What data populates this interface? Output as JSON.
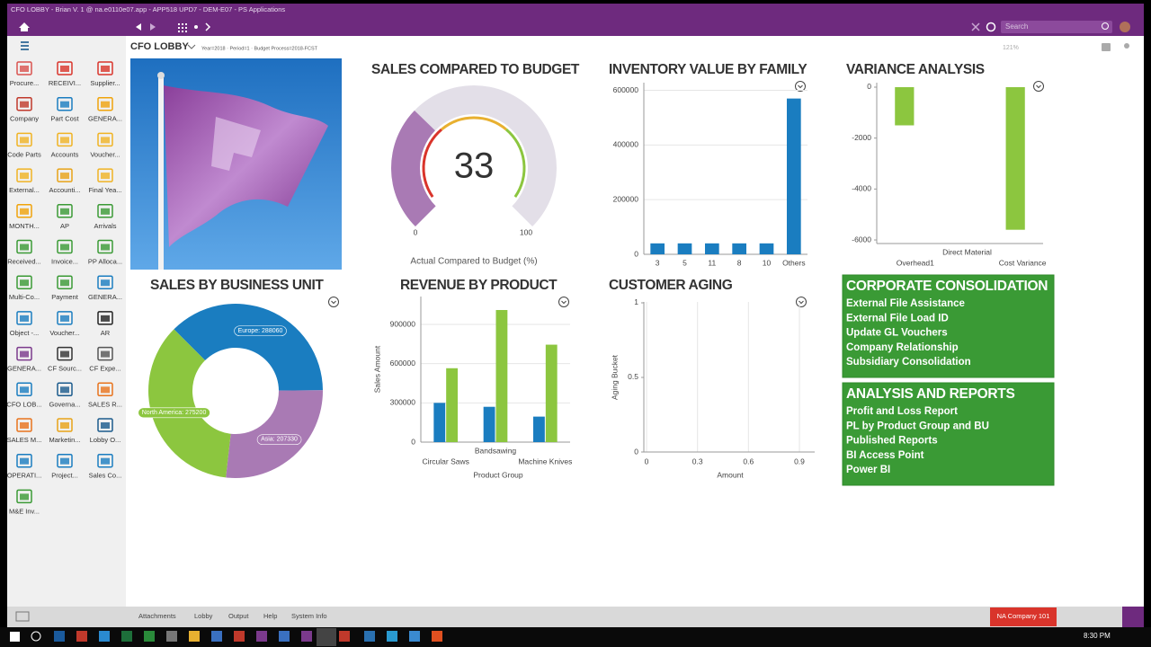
{
  "window": {
    "title": "CFO LOBBY - Brian V. 1 @ na.e0110e07.app - APP518 UPD7 - DEM-E07 - PS Applications",
    "search_placeholder": "Search",
    "zoom": "121%"
  },
  "header": {
    "title": "CFO LOBBY",
    "params": "Year=2018 · Period=1 · Budget Process=2018-FCST"
  },
  "sidebar": {
    "items": [
      {
        "label": "Procure...",
        "color": "#d9534f"
      },
      {
        "label": "RECEIVI...",
        "color": "#d9342b"
      },
      {
        "label": "Supplier...",
        "color": "#d9342b"
      },
      {
        "label": "Company",
        "color": "#c0392b"
      },
      {
        "label": "Part Cost",
        "color": "#1a7dc0"
      },
      {
        "label": "GENERA...",
        "color": "#f0a30a"
      },
      {
        "label": "Code Parts",
        "color": "#f0b323"
      },
      {
        "label": "Accounts",
        "color": "#f0b323"
      },
      {
        "label": "Voucher...",
        "color": "#f0b323"
      },
      {
        "label": "External...",
        "color": "#f0b323"
      },
      {
        "label": "Accounti...",
        "color": "#e8a317"
      },
      {
        "label": "Final Yea...",
        "color": "#f0b323"
      },
      {
        "label": "MONTH...",
        "color": "#f0a30a"
      },
      {
        "label": "AP",
        "color": "#3a9a35"
      },
      {
        "label": "Arrivals",
        "color": "#3a9a35"
      },
      {
        "label": "Received...",
        "color": "#3a9a35"
      },
      {
        "label": "Invoice...",
        "color": "#3a9a35"
      },
      {
        "label": "PP Alloca...",
        "color": "#3a9a35"
      },
      {
        "label": "Multi-Co...",
        "color": "#3a9a35"
      },
      {
        "label": "Payment",
        "color": "#3a9a35"
      },
      {
        "label": "GENERA...",
        "color": "#1a7dc0"
      },
      {
        "label": "Object -...",
        "color": "#1a7dc0"
      },
      {
        "label": "Voucher...",
        "color": "#1a7dc0"
      },
      {
        "label": "AR",
        "color": "#222222"
      },
      {
        "label": "GENERA...",
        "color": "#7b3a8c"
      },
      {
        "label": "CF Sourc...",
        "color": "#333333"
      },
      {
        "label": "CF Expe...",
        "color": "#555555"
      },
      {
        "label": "CFO LOB...",
        "color": "#1a7dc0"
      },
      {
        "label": "Governa...",
        "color": "#1a5a8c"
      },
      {
        "label": "SALES R...",
        "color": "#e8731c"
      },
      {
        "label": "SALES M...",
        "color": "#e8731c"
      },
      {
        "label": "Marketin...",
        "color": "#e8a317"
      },
      {
        "label": "Lobby O...",
        "color": "#1a5a8c"
      },
      {
        "label": "OPERATI...",
        "color": "#1a7dc0"
      },
      {
        "label": "Project...",
        "color": "#1a7dc0"
      },
      {
        "label": "Sales Co...",
        "color": "#1a7dc0"
      },
      {
        "label": "M&E Inv...",
        "color": "#3a9a35"
      }
    ]
  },
  "widgets": {
    "gauge": {
      "type": "gauge",
      "title": "SALES COMPARED TO BUDGET",
      "value": 33,
      "min": 0,
      "max": 100,
      "caption": "Actual Compared to Budget (%)",
      "color": "#a97ab4",
      "track_color": "#e3dfe8"
    },
    "inventory": {
      "type": "bar",
      "title": "INVENTORY VALUE BY FAMILY",
      "categories": [
        "3",
        "5",
        "11",
        "8",
        "10",
        "Others"
      ],
      "values": [
        40000,
        40000,
        40000,
        40000,
        40000,
        570000
      ],
      "color": "#1a7dc0",
      "ylim": [
        0,
        628000
      ],
      "yticks": [
        0,
        200000,
        400000,
        600000
      ],
      "grid": true
    },
    "variance": {
      "type": "bar",
      "title": "VARIANCE ANALYSIS",
      "categories": [
        "Overhead1",
        "Direct Material",
        "Cost Variance"
      ],
      "values": [
        -1500,
        0,
        -5600
      ],
      "color": "#8cc63f",
      "ylim": [
        -6140,
        176
      ],
      "yticks": [
        0,
        -2000,
        -4000,
        -6000
      ],
      "grid": false
    },
    "sales_bu": {
      "type": "donut",
      "title": "SALES BY BUSINESS UNIT",
      "labels": [
        "Europe: 288060",
        "Asia: 207330",
        "North America: 275200"
      ],
      "values": [
        288060,
        207330,
        275200
      ],
      "colors": [
        "#1a7dc0",
        "#a97ab4",
        "#8cc63f"
      ]
    },
    "revenue": {
      "type": "bar",
      "title": "REVENUE BY PRODUCT",
      "categories": [
        "Circular Saws",
        "Bandsawing",
        "Machine Knives"
      ],
      "series": [
        {
          "color": "#1a7dc0",
          "values": [
            300000,
            270000,
            195000
          ]
        },
        {
          "color": "#8cc63f",
          "values": [
            565000,
            1010000,
            745000
          ]
        }
      ],
      "ylim": [
        0,
        1113000
      ],
      "yticks": [
        0,
        300000,
        600000,
        900000
      ],
      "ylabel": "Sales Amount",
      "xlabel": "Product Group",
      "grid": true
    },
    "aging": {
      "type": "scatter",
      "title": "CUSTOMER AGING",
      "xlim": [
        -0.016,
        0.99
      ],
      "xticks": [
        0,
        0.3,
        0.6,
        0.9
      ],
      "ylim": [
        0,
        1.006
      ],
      "yticks": [
        0,
        0.5,
        1
      ],
      "ylabel": "Aging Bucket",
      "xlabel": "Amount",
      "grid": true
    },
    "tiles": [
      {
        "title": "CORPORATE CONSOLIDATION",
        "links": [
          "External File Assistance",
          "External File Load ID",
          "Update GL Vouchers",
          "Company Relationship",
          "Subsidiary Consolidation"
        ]
      },
      {
        "title": "ANALYSIS AND REPORTS",
        "links": [
          "Profit and Loss Report",
          "PL by Product Group and BU",
          "Published Reports",
          "BI Access Point",
          "Power BI"
        ]
      }
    ]
  },
  "footer": {
    "links": [
      "Attachments",
      "Lobby",
      "Output",
      "Help",
      "System Info"
    ],
    "company": "NA Company 101"
  },
  "taskbar": {
    "time": "8:30 PM"
  }
}
